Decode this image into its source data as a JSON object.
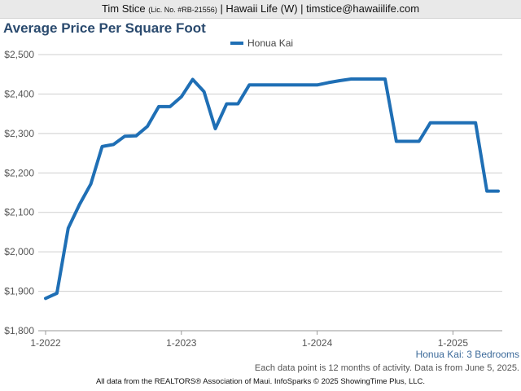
{
  "header": {
    "name": "Tim Stice",
    "license": "(Lic. No. #RB-21556)",
    "rest": "| Hawaii Life (W) | timstice@hawaiilife.com"
  },
  "footer": "All data from the REALTORS® Association of Maui. InfoSparks © 2025 ShowingTime Plus, LLC.",
  "chart_data": {
    "type": "line",
    "title": "Average Price Per Square Foot",
    "subtitle": "Honua Kai: 3 Bedrooms",
    "note": "Each data point is 12 months of activity. Data is from June 5, 2025.",
    "legend": {
      "position": "top-center"
    },
    "grid": true,
    "ylim": [
      1800,
      2500
    ],
    "yticks": [
      1800,
      1900,
      2000,
      2100,
      2200,
      2300,
      2400,
      2500
    ],
    "ytick_labels": [
      "$1,800",
      "$1,900",
      "$2,000",
      "$2,100",
      "$2,200",
      "$2,300",
      "$2,400",
      "$2,500"
    ],
    "xlim": [
      "2022-01",
      "2025-05"
    ],
    "xticks": [
      "2022-01",
      "2023-01",
      "2024-01",
      "2025-01"
    ],
    "xtick_labels": [
      "1-2022",
      "1-2023",
      "1-2024",
      "1-2025"
    ],
    "color": "#1f6fb5",
    "series": [
      {
        "name": "Honua Kai",
        "x": [
          "2022-01",
          "2022-02",
          "2022-03",
          "2022-04",
          "2022-05",
          "2022-06",
          "2022-07",
          "2022-08",
          "2022-09",
          "2022-10",
          "2022-11",
          "2022-12",
          "2023-01",
          "2023-02",
          "2023-03",
          "2023-04",
          "2023-05",
          "2023-06",
          "2023-07",
          "2023-08",
          "2023-09",
          "2023-10",
          "2023-11",
          "2023-12",
          "2024-01",
          "2024-02",
          "2024-03",
          "2024-04",
          "2024-05",
          "2024-06",
          "2024-07",
          "2024-08",
          "2024-09",
          "2024-10",
          "2024-11",
          "2024-12",
          "2025-01",
          "2025-02",
          "2025-03",
          "2025-04",
          "2025-05"
        ],
        "values": [
          1882,
          1895,
          2060,
          2120,
          2172,
          2267,
          2272,
          2293,
          2294,
          2318,
          2368,
          2368,
          2393,
          2437,
          2406,
          2312,
          2375,
          2375,
          2423,
          2423,
          2423,
          2423,
          2423,
          2423,
          2423,
          2429,
          2434,
          2438,
          2438,
          2438,
          2438,
          2280,
          2280,
          2280,
          2327,
          2327,
          2327,
          2327,
          2327,
          2154,
          2154
        ]
      }
    ]
  }
}
